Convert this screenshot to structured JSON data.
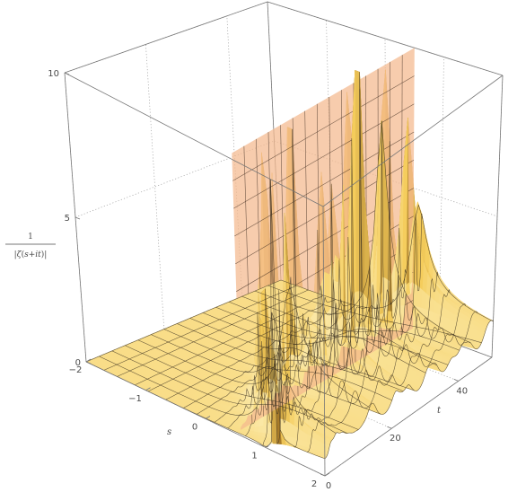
{
  "chart_data": {
    "type": "surface3d",
    "function": "1/|ζ(s+it)|",
    "z_label": {
      "numerator": "1",
      "denominator_parts": [
        "|",
        "ζ",
        "(",
        "s",
        "+",
        "i",
        "t",
        ")",
        "|"
      ]
    },
    "s_axis": {
      "label": "s",
      "range": [
        -2,
        2
      ],
      "ticks": [
        -2,
        -1,
        0,
        1,
        2
      ],
      "tick_labels": [
        "−2",
        "−1",
        "0",
        "1",
        "2"
      ]
    },
    "t_axis": {
      "label": "t",
      "range": [
        0,
        50
      ],
      "ticks": [
        0,
        20,
        40
      ],
      "tick_labels": [
        "0",
        "20",
        "40"
      ]
    },
    "z_axis": {
      "range": [
        0,
        10
      ],
      "ticks": [
        0,
        5,
        10
      ],
      "tick_labels": [
        "0",
        "5",
        "10"
      ]
    },
    "critical_line_plane": {
      "s": 0.5
    },
    "zeta_zero_t_values": [
      14.13,
      21.02,
      25.01,
      30.42,
      32.94,
      37.59,
      40.92,
      43.33,
      48.01,
      49.77
    ],
    "grid": true,
    "colors": {
      "surface_base": "#f5cd5c",
      "surface_light": "#fbe8a6",
      "surface_shadow": "#a77b2a",
      "mesh": "#3a3020",
      "plane_fill": "#f4b88e",
      "plane_mesh": "#4a3628",
      "box": "#777777",
      "gridline": "#a0a0a0"
    }
  }
}
